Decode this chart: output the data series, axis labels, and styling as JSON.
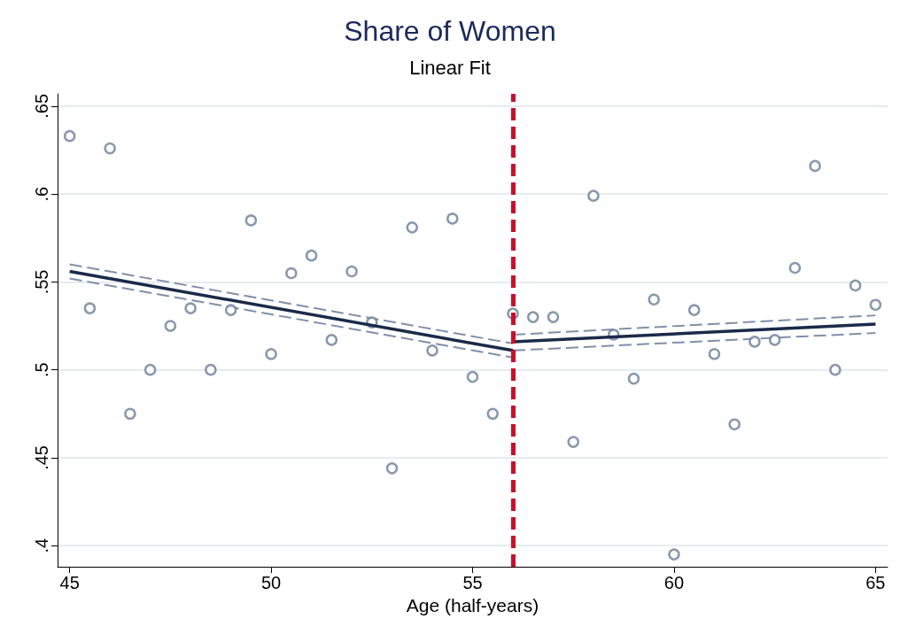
{
  "chart_data": {
    "type": "scatter",
    "title": "Share of Women",
    "subtitle": "Linear Fit",
    "xlabel": "Age (half-years)",
    "xlim": [
      44.7,
      65.3
    ],
    "xticks": [
      45,
      50,
      55,
      60,
      65
    ],
    "ylim": [
      0.388,
      0.657
    ],
    "yticks": [
      {
        "value": 0.4,
        "label": ".4"
      },
      {
        "value": 0.45,
        "label": ".45"
      },
      {
        "value": 0.5,
        "label": ".5"
      },
      {
        "value": 0.55,
        "label": ".55"
      },
      {
        "value": 0.6,
        "label": ".6"
      },
      {
        "value": 0.65,
        "label": ".65"
      }
    ],
    "grid": "y",
    "marker": "circle",
    "ref_lines": [
      {
        "axis": "x",
        "value": 56,
        "color": "#c8102e",
        "line_style": "dashed"
      }
    ],
    "series": [
      {
        "color": "#6a7f99",
        "x": [
          45,
          45.5,
          46,
          46.5,
          47,
          47.5,
          48,
          48.5,
          49,
          49.5,
          50,
          50.5,
          51,
          51.5,
          52,
          52.5,
          53,
          53.5,
          54,
          54.5,
          55,
          55.5,
          56,
          56.5,
          57,
          57.5,
          58,
          58.5,
          59,
          59.5,
          60,
          60.5,
          61,
          61.5,
          62,
          62.5,
          63,
          63.5,
          64,
          64.5,
          65
        ],
        "values": [
          0.633,
          0.535,
          0.626,
          0.475,
          0.5,
          0.525,
          0.535,
          0.5,
          0.534,
          0.585,
          0.509,
          0.555,
          0.565,
          0.517,
          0.556,
          0.527,
          0.444,
          0.581,
          0.511,
          0.586,
          0.496,
          0.475,
          0.532,
          0.53,
          0.53,
          0.459,
          0.599,
          0.52,
          0.495,
          0.54,
          0.395,
          0.534,
          0.509,
          0.469,
          0.516,
          0.517,
          0.558,
          0.616,
          0.5,
          0.548,
          0.537
        ]
      },
      {
        "type": "line",
        "color": "#7f90aa",
        "marker": "none",
        "line_style": "dashed",
        "x": [
          45,
          56
        ],
        "values": [
          0.552,
          0.507
        ]
      },
      {
        "type": "line",
        "color": "#7f90aa",
        "marker": "none",
        "line_style": "dashed",
        "x": [
          45,
          56
        ],
        "values": [
          0.56,
          0.515
        ]
      },
      {
        "type": "line",
        "color": "#7f90aa",
        "marker": "none",
        "line_style": "dashed",
        "x": [
          56,
          65
        ],
        "values": [
          0.511,
          0.521
        ]
      },
      {
        "type": "line",
        "color": "#7f90aa",
        "marker": "none",
        "line_style": "dashed",
        "x": [
          56,
          65
        ],
        "values": [
          0.52,
          0.531
        ]
      },
      {
        "type": "line",
        "color": "#1a2a4a",
        "marker": "none",
        "line_style": "solid",
        "x": [
          45,
          56
        ],
        "values": [
          0.556,
          0.511
        ]
      },
      {
        "type": "line",
        "color": "#1a2a4a",
        "marker": "none",
        "line_style": "solid",
        "x": [
          56,
          65
        ],
        "values": [
          0.516,
          0.526
        ]
      }
    ]
  }
}
